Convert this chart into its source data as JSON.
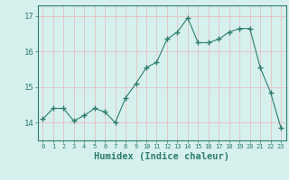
{
  "x": [
    0,
    1,
    2,
    3,
    4,
    5,
    6,
    7,
    8,
    9,
    10,
    11,
    12,
    13,
    14,
    15,
    16,
    17,
    18,
    19,
    20,
    21,
    22,
    23
  ],
  "y": [
    14.1,
    14.4,
    14.4,
    14.05,
    14.2,
    14.4,
    14.3,
    14.0,
    14.7,
    15.1,
    15.55,
    15.7,
    16.35,
    16.55,
    16.95,
    16.25,
    16.25,
    16.35,
    16.55,
    16.65,
    16.65,
    15.55,
    14.85,
    13.85
  ],
  "line_color": "#2e7d6e",
  "marker": "+",
  "marker_size": 4,
  "bg_color": "#d6f0ee",
  "grid_color": "#e8b8b8",
  "axis_color": "#2e7d6e",
  "tick_color": "#2e7d6e",
  "xlabel": "Humidex (Indice chaleur)",
  "xlabel_fontsize": 7.5,
  "yticks": [
    14,
    15,
    16,
    17
  ],
  "ylim": [
    13.5,
    17.3
  ],
  "xlim": [
    -0.5,
    23.5
  ],
  "xtick_labels": [
    "0",
    "1",
    "2",
    "3",
    "4",
    "5",
    "6",
    "7",
    "8",
    "9",
    "10",
    "11",
    "12",
    "13",
    "14",
    "15",
    "16",
    "17",
    "18",
    "19",
    "20",
    "21",
    "22",
    "23"
  ]
}
